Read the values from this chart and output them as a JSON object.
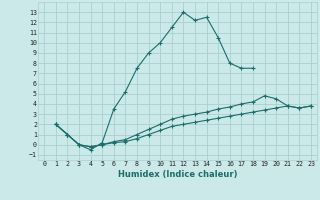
{
  "xlabel": "Humidex (Indice chaleur)",
  "bg_color": "#cce9ea",
  "grid_color": "#aacfd0",
  "line_color": "#1a6e6a",
  "curves": [
    {
      "x": [
        1,
        2,
        3,
        4,
        5,
        6,
        7,
        8,
        9,
        10,
        11,
        12,
        13,
        14,
        15,
        16,
        17,
        18
      ],
      "y": [
        2,
        1,
        0,
        -0.5,
        0.2,
        3.5,
        5.2,
        7.5,
        9,
        10,
        11.5,
        13,
        12.2,
        12.5,
        10.5,
        8,
        7.5,
        7.5
      ]
    },
    {
      "x": [
        1,
        2,
        3,
        4,
        5,
        6,
        7,
        8,
        9,
        10,
        11,
        12,
        13,
        14,
        15,
        16,
        17,
        18,
        19,
        20,
        21,
        22,
        23
      ],
      "y": [
        2,
        1,
        0.0,
        -0.2,
        0.0,
        0.3,
        0.5,
        1.0,
        1.5,
        2.0,
        2.5,
        2.8,
        3.0,
        3.2,
        3.5,
        3.7,
        4.0,
        4.2,
        4.8,
        4.5,
        3.8,
        3.6,
        3.8
      ]
    },
    {
      "x": [
        1,
        2,
        3,
        4,
        5,
        6,
        7,
        8,
        9,
        10,
        11,
        12,
        13,
        14,
        15,
        16,
        17,
        18,
        19,
        20,
        21,
        22,
        23
      ],
      "y": [
        2,
        1,
        0.0,
        -0.2,
        0.0,
        0.2,
        0.3,
        0.6,
        1.0,
        1.4,
        1.8,
        2.0,
        2.2,
        2.4,
        2.6,
        2.8,
        3.0,
        3.2,
        3.4,
        3.6,
        3.8,
        3.6,
        3.8
      ]
    }
  ],
  "xlim": [
    -0.5,
    23.5
  ],
  "ylim": [
    -1.5,
    14.0
  ],
  "xticks": [
    0,
    1,
    2,
    3,
    4,
    5,
    6,
    7,
    8,
    9,
    10,
    11,
    12,
    13,
    14,
    15,
    16,
    17,
    18,
    19,
    20,
    21,
    22,
    23
  ],
  "yticks": [
    -1,
    0,
    1,
    2,
    3,
    4,
    5,
    6,
    7,
    8,
    9,
    10,
    11,
    12,
    13
  ]
}
